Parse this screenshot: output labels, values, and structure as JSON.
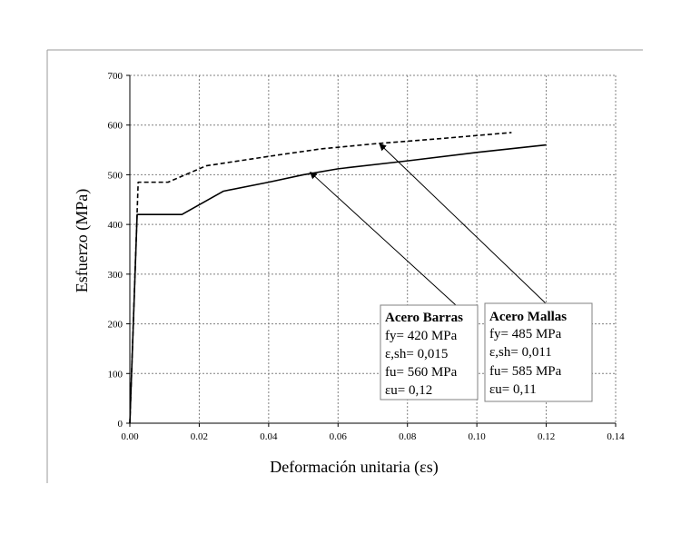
{
  "chart_data": {
    "type": "line",
    "title": "",
    "xlabel": "Deformación unitaria (εs)",
    "ylabel": "Esfuerzo (MPa)",
    "xlim": [
      0,
      0.14
    ],
    "ylim": [
      0,
      700
    ],
    "x_ticks": [
      "0.00",
      "0.02",
      "0.04",
      "0.06",
      "0.08",
      "0.10",
      "0.12",
      "0.14"
    ],
    "x_tick_values": [
      0,
      0.02,
      0.04,
      0.06,
      0.08,
      0.1,
      0.12,
      0.14
    ],
    "y_ticks": [
      "0",
      "100",
      "200",
      "300",
      "400",
      "500",
      "600",
      "700"
    ],
    "y_tick_values": [
      0,
      100,
      200,
      300,
      400,
      500,
      600,
      700
    ],
    "grid": true,
    "series": [
      {
        "name": "Acero Barras",
        "style": "solid",
        "color": "#000000",
        "x": [
          0,
          0.0021,
          0.015,
          0.027,
          0.04,
          0.05,
          0.06,
          0.08,
          0.1,
          0.12
        ],
        "y": [
          0,
          420,
          420,
          467,
          485,
          500,
          512,
          528,
          545,
          560
        ]
      },
      {
        "name": "Acero Mallas",
        "style": "dashed",
        "color": "#000000",
        "x": [
          0,
          0.0024,
          0.011,
          0.022,
          0.04,
          0.055,
          0.07,
          0.09,
          0.11
        ],
        "y": [
          0,
          485,
          485,
          518,
          537,
          552,
          562,
          573,
          585
        ]
      }
    ],
    "annotations": [
      {
        "id": "barras",
        "title": "Acero Barras",
        "lines": [
          "fy= 420 MPa",
          "ε,sh= 0,015",
          "fu= 560 MPa",
          "εu= 0,12"
        ],
        "arrow_to": [
          0.052,
          505
        ]
      },
      {
        "id": "mallas",
        "title": "Acero Mallas",
        "lines": [
          "fy= 485 MPa",
          "ε,sh= 0,011",
          "fu= 585 MPa",
          "εu= 0,11"
        ],
        "arrow_to": [
          0.072,
          562
        ]
      }
    ]
  }
}
